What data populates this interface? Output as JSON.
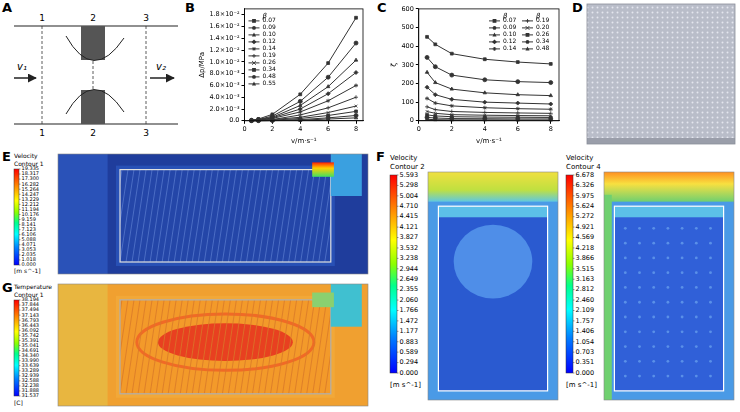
{
  "diagram_A": {
    "panel": "A",
    "sections": [
      "1",
      "2",
      "3"
    ],
    "inlet_velocity": "v₁",
    "outlet_velocity": "v₂"
  },
  "chart_data": [
    {
      "panel": "B",
      "type": "line",
      "xlabel": "v/m·s⁻¹",
      "ylabel": "Δp/MPa",
      "x": [
        0.5,
        1,
        2,
        4,
        6,
        8
      ],
      "xlim": [
        0,
        8.5
      ],
      "xticks": [
        0,
        2,
        4,
        6,
        8
      ],
      "ylim": [
        0,
        0.019
      ],
      "yticks": [
        {
          "value": 0,
          "label": "0.0"
        },
        {
          "value": 0.002,
          "label": "2.0×10⁻³"
        },
        {
          "value": 0.004,
          "label": "4.0×10⁻³"
        },
        {
          "value": 0.006,
          "label": "6.0×10⁻³"
        },
        {
          "value": 0.008,
          "label": "8.0×10⁻³"
        },
        {
          "value": 0.01,
          "label": "1.0×10⁻²"
        },
        {
          "value": 0.012,
          "label": "1.2×10⁻²"
        },
        {
          "value": 0.014,
          "label": "1.4×10⁻²"
        },
        {
          "value": 0.016,
          "label": "1.6×10⁻²"
        },
        {
          "value": 0.018,
          "label": "1.8×10⁻²"
        }
      ],
      "grid": false,
      "legend": "upper left",
      "legend_title": "β",
      "series": [
        {
          "name": "0.07",
          "color": "#333333",
          "marker": "square",
          "values": [
            0.0001,
            0.0003,
            0.0011,
            0.0045,
            0.0098,
            0.0175
          ]
        },
        {
          "name": "0.09",
          "color": "#333333",
          "marker": "circle",
          "values": [
            0.0001,
            0.0002,
            0.0008,
            0.0033,
            0.0074,
            0.0132
          ]
        },
        {
          "name": "0.10",
          "color": "#333333",
          "marker": "triangle",
          "values": [
            0.0001,
            0.0002,
            0.0006,
            0.0026,
            0.0058,
            0.0103
          ]
        },
        {
          "name": "0.12",
          "color": "#333333",
          "marker": "diamond",
          "values": [
            5e-05,
            0.0001,
            0.0005,
            0.002,
            0.0046,
            0.0082
          ]
        },
        {
          "name": "0.14",
          "color": "#333333",
          "marker": "star",
          "values": [
            4e-05,
            0.0001,
            0.0004,
            0.0015,
            0.0034,
            0.006
          ]
        },
        {
          "name": "0.19",
          "color": "#333333",
          "marker": "cross",
          "values": [
            3e-05,
            0.0001,
            0.0002,
            0.001,
            0.0022,
            0.004
          ]
        },
        {
          "name": "0.26",
          "color": "#333333",
          "marker": "x",
          "values": [
            2e-05,
            5e-05,
            0.0002,
            0.0006,
            0.0014,
            0.0025
          ]
        },
        {
          "name": "0.34",
          "color": "#333333",
          "marker": "square",
          "values": [
            1e-05,
            3e-05,
            0.0001,
            0.0004,
            0.0009,
            0.0016
          ]
        },
        {
          "name": "0.48",
          "color": "#333333",
          "marker": "circle",
          "values": [
            1e-05,
            2e-05,
            5e-05,
            0.0002,
            0.0005,
            0.0009
          ]
        },
        {
          "name": "0.55",
          "color": "#333333",
          "marker": "triangle",
          "values": [
            1e-05,
            1e-05,
            3e-05,
            0.0001,
            0.0003,
            0.0005
          ]
        }
      ]
    },
    {
      "panel": "C",
      "type": "line",
      "xlabel": "v/m·s⁻¹",
      "ylabel": "ζ",
      "x": [
        0.5,
        1,
        2,
        4,
        6,
        8
      ],
      "xlim": [
        0,
        8.5
      ],
      "xticks": [
        0,
        2,
        4,
        6,
        8
      ],
      "ylim": [
        0,
        600
      ],
      "yticks": [
        0,
        100,
        200,
        300,
        400,
        500,
        600
      ],
      "grid": false,
      "legend": "upper right",
      "legend_title": "β",
      "series": [
        {
          "name": "0.07",
          "color": "#333333",
          "marker": "square",
          "values": [
            450,
            410,
            360,
            330,
            315,
            305
          ]
        },
        {
          "name": "0.09",
          "color": "#333333",
          "marker": "circle",
          "values": [
            340,
            290,
            245,
            220,
            210,
            205
          ]
        },
        {
          "name": "0.10",
          "color": "#333333",
          "marker": "triangle",
          "values": [
            260,
            205,
            170,
            150,
            140,
            135
          ]
        },
        {
          "name": "0.12",
          "color": "#333333",
          "marker": "diamond",
          "values": [
            180,
            140,
            115,
            100,
            95,
            90
          ]
        },
        {
          "name": "0.14",
          "color": "#333333",
          "marker": "star",
          "values": [
            120,
            95,
            80,
            70,
            65,
            62
          ]
        },
        {
          "name": "0.19",
          "color": "#333333",
          "marker": "cross",
          "values": [
            75,
            60,
            50,
            45,
            42,
            40
          ]
        },
        {
          "name": "0.20",
          "color": "#333333",
          "marker": "x",
          "values": [
            50,
            40,
            33,
            30,
            28,
            27
          ]
        },
        {
          "name": "0.26",
          "color": "#333333",
          "marker": "square",
          "values": [
            32,
            26,
            22,
            20,
            19,
            18
          ]
        },
        {
          "name": "0.34",
          "color": "#333333",
          "marker": "circle",
          "values": [
            18,
            15,
            12,
            11,
            10,
            10
          ]
        },
        {
          "name": "0.48",
          "color": "#333333",
          "marker": "triangle",
          "values": [
            8,
            6,
            5,
            5,
            4,
            4
          ]
        }
      ]
    }
  ],
  "image_D": {
    "panel": "D"
  },
  "contour_panels": [
    {
      "panel": "E",
      "plots": [
        {
          "variable": "Velocity",
          "contour": "Contour 1",
          "unit": "[m s^-1]",
          "colorbar_ticks": [
            19.335,
            18.317,
            {
              "value": 17.3,
              "label": "17.300"
            },
            16.282,
            15.264,
            14.247,
            13.229,
            12.212,
            11.194,
            10.176,
            9.159,
            8.141,
            7.123,
            6.106,
            5.088,
            4.071,
            3.053,
            2.035,
            1.018,
            {
              "value": 0,
              "label": "0.000"
            }
          ]
        }
      ]
    },
    {
      "panel": "F",
      "plots": [
        {
          "variable": "Velocity",
          "contour": "Contour 2",
          "unit": "[m s^-1]",
          "colorbar_ticks": [
            5.593,
            5.298,
            5.004,
            {
              "value": 4.71,
              "label": "4.710"
            },
            4.415,
            4.121,
            3.827,
            3.532,
            3.238,
            2.944,
            2.649,
            2.355,
            {
              "value": 2.06,
              "label": "2.060"
            },
            1.766,
            1.472,
            1.177,
            0.883,
            0.589,
            0.294,
            {
              "value": 0,
              "label": "0.000"
            }
          ]
        },
        {
          "variable": "Velocity",
          "contour": "Contour 4",
          "unit": "[m s^-1]",
          "colorbar_ticks": [
            6.678,
            6.326,
            5.975,
            5.624,
            5.272,
            4.921,
            4.569,
            4.218,
            3.866,
            3.515,
            3.163,
            2.812,
            {
              "value": 2.46,
              "label": "2.460"
            },
            2.109,
            1.757,
            1.406,
            1.054,
            0.703,
            0.351,
            {
              "value": 0,
              "label": "0.000"
            }
          ]
        }
      ]
    },
    {
      "panel": "G",
      "plots": [
        {
          "variable": "Temperature",
          "contour": "Contour 1",
          "unit": "[C]",
          "colorbar_ticks": [
            38.194,
            37.844,
            37.494,
            37.143,
            36.793,
            36.443,
            36.092,
            35.742,
            35.391,
            35.041,
            34.691,
            {
              "value": 34.34,
              "label": "34.340"
            },
            {
              "value": 33.99,
              "label": "33.990"
            },
            33.639,
            33.289,
            32.939,
            32.588,
            32.238,
            31.888,
            31.537
          ]
        }
      ]
    }
  ]
}
